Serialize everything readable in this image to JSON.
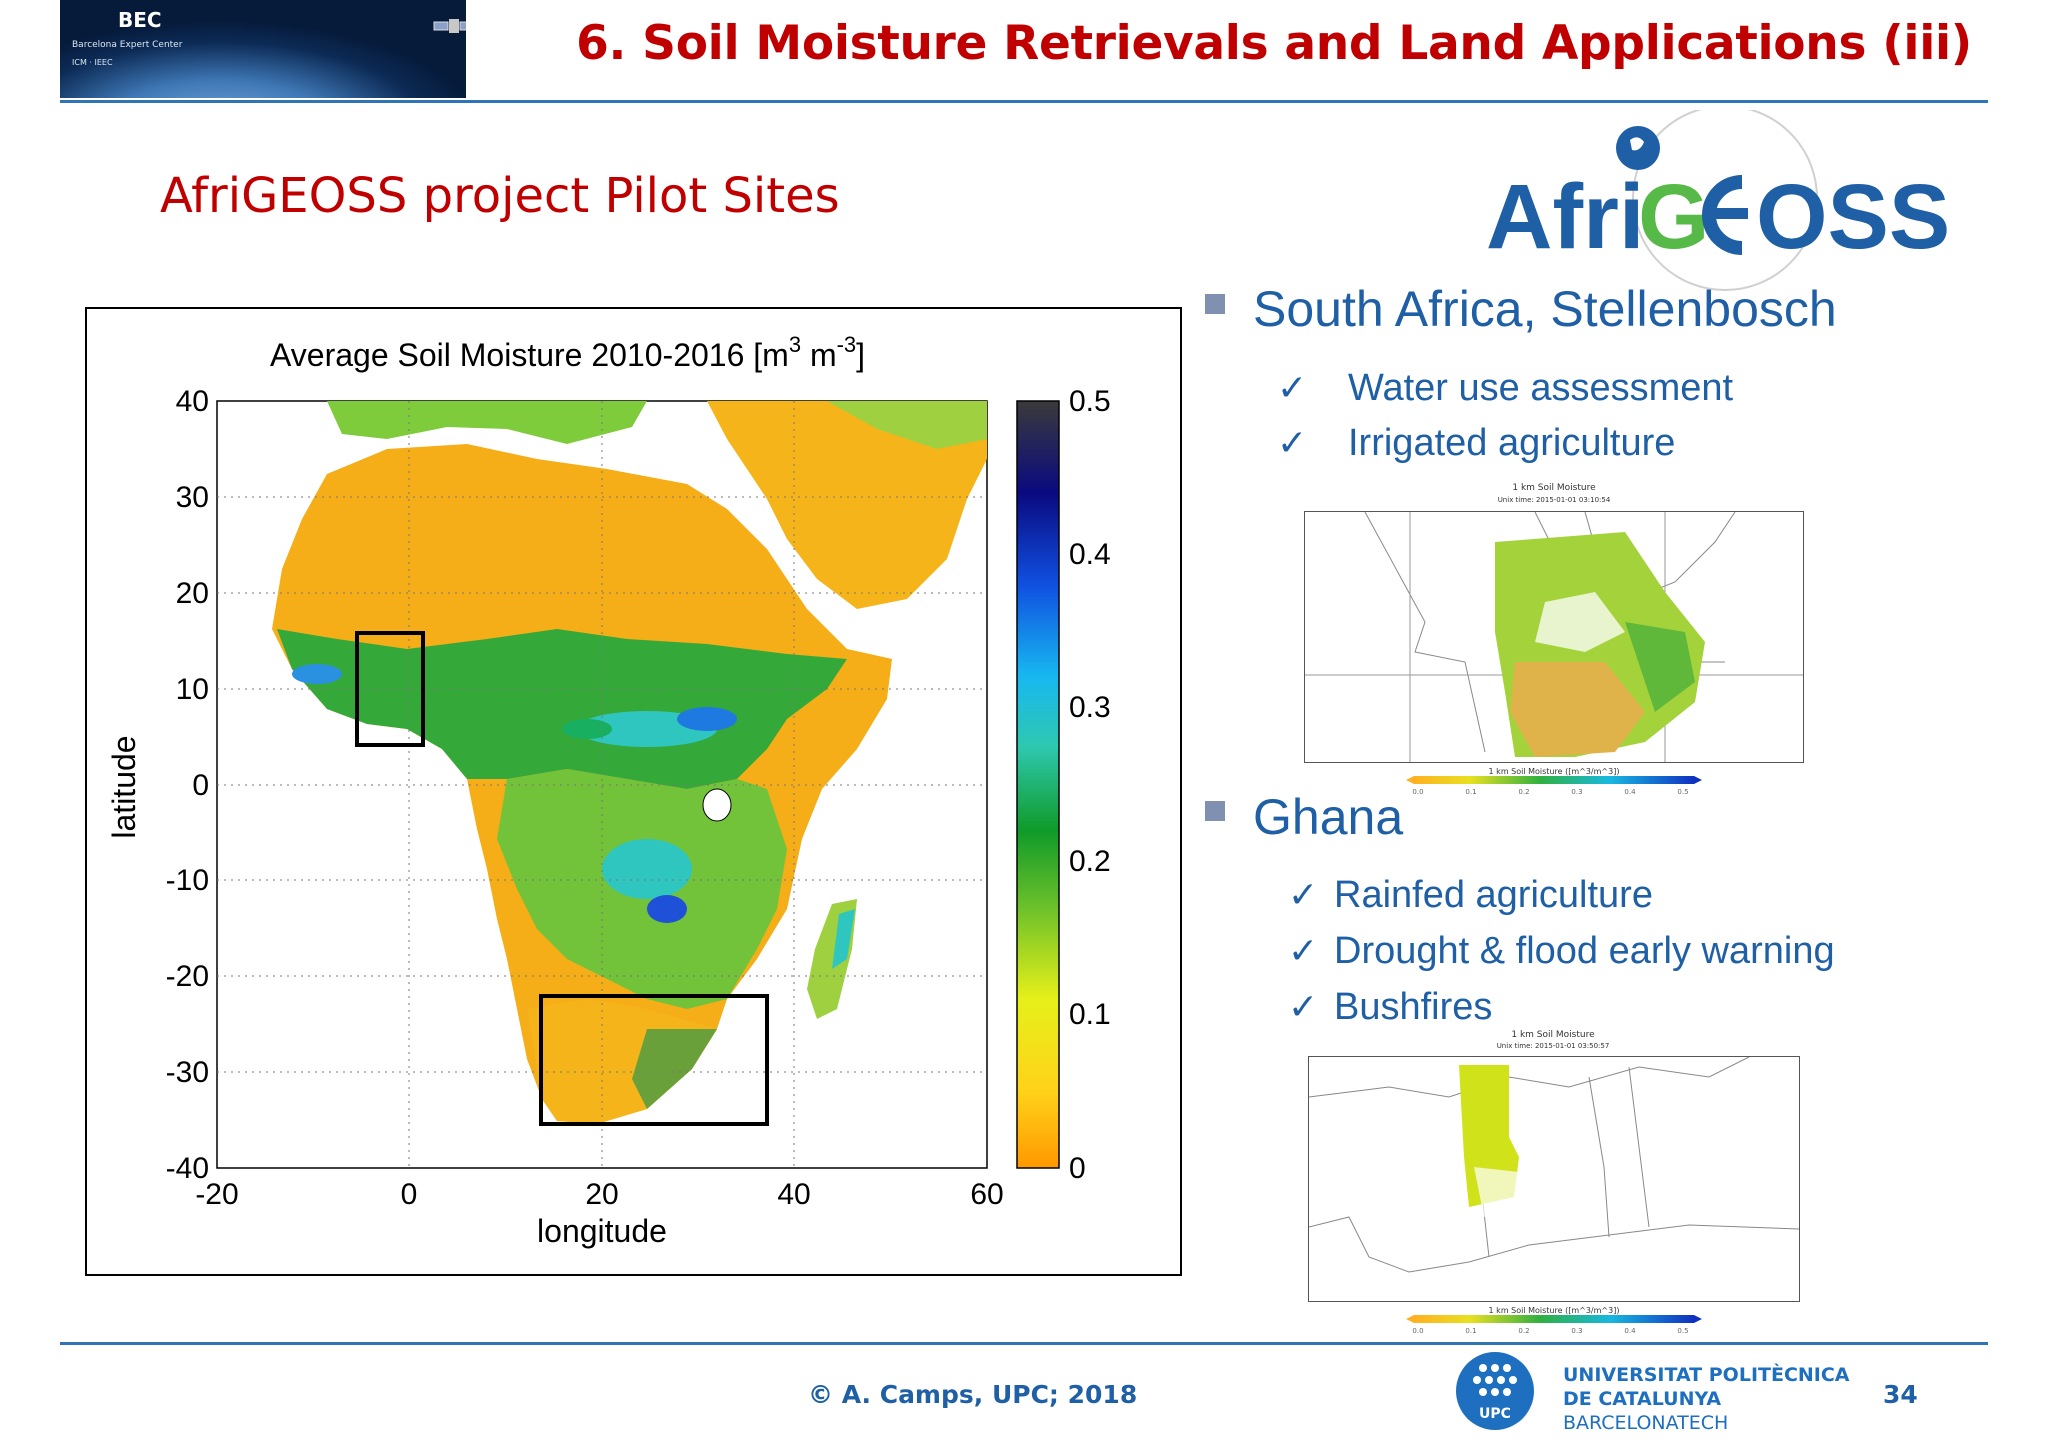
{
  "header": {
    "logo": {
      "name": "BEC",
      "subtitle": "Barcelona Expert Center",
      "partners": "ICM · IEEC"
    },
    "title": "6. Soil Moisture Retrievals and Land Applications (iii)"
  },
  "subtitle": "AfriGEOSS project Pilot Sites",
  "afrigeoss_logo": {
    "text_left": "Afri",
    "text_g": "G",
    "text_right": "OSS",
    "color": "#1f5fa5",
    "accent": "#57b947"
  },
  "map": {
    "title": "Average Soil Moisture 2010-2016 [m",
    "title_sup1": "3",
    "title_mid": " m",
    "title_sup2": "-3",
    "title_end": "]",
    "xlabel": "longitude",
    "ylabel": "latitude",
    "xticks": [
      "-20",
      "0",
      "20",
      "40",
      "60"
    ],
    "yticks": [
      "40",
      "30",
      "20",
      "10",
      "0",
      "-10",
      "-20",
      "-30",
      "-40"
    ],
    "colorbar_ticks": [
      "0.5",
      "0.4",
      "0.3",
      "0.2",
      "0.1",
      "0"
    ]
  },
  "sites": [
    {
      "heading": "South Africa, Stellenbosch",
      "items": [
        "Water use assessment",
        "Irrigated agriculture"
      ],
      "thumb": {
        "title": "1 km Soil Moisture",
        "time": "Unix time: 2015-01-01 03:10:54",
        "cbar_label": "1 km Soil Moisture ([m^3/m^3])",
        "ticks": [
          "0.0",
          "0.1",
          "0.2",
          "0.3",
          "0.4",
          "0.5"
        ]
      }
    },
    {
      "heading": "Ghana",
      "items": [
        "Rainfed agriculture",
        "Drought & flood early warning",
        "Bushfires"
      ],
      "thumb": {
        "title": "1 km Soil Moisture",
        "time": "Unix time: 2015-01-01 03:50:57",
        "cbar_label": "1 km Soil Moisture ([m^3/m^3])",
        "ticks": [
          "0.0",
          "0.1",
          "0.2",
          "0.3",
          "0.4",
          "0.5"
        ]
      }
    }
  ],
  "check_glyph": "✓",
  "footer": {
    "credit": "© A. Camps, UPC; 2018",
    "university_line1": "UNIVERSITAT POLITÈCNICA",
    "university_line2": "DE CATALUNYA",
    "university_line3": "BARCELONATECH",
    "upc": "UPC",
    "page": "34"
  },
  "colors": {
    "title_red": "#c00000",
    "blue": "#1f5fa5",
    "rule": "#2f75b5"
  }
}
